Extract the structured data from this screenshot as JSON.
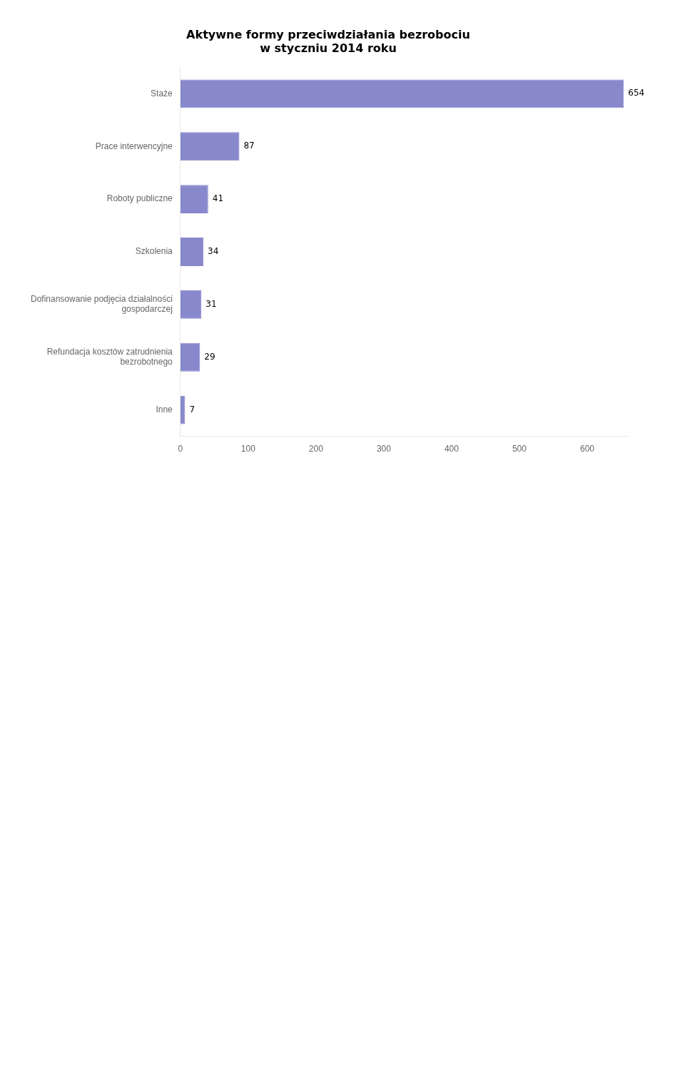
{
  "chart_data": {
    "type": "bar",
    "orientation": "horizontal",
    "title": "Aktywne formy przeciwdziałania bezrobociu\nw styczniu 2014 roku",
    "categories": [
      "Staże",
      "Prace interwencyjne",
      "Roboty publiczne",
      "Szkolenia",
      "Dofinansowanie podjęcia działalności\ngospodarczej",
      "Refundacja kosztów zatrudnienia\nbezrobotnego",
      "Inne"
    ],
    "values": [
      654,
      87,
      41,
      34,
      31,
      29,
      7
    ],
    "color": "#8888cc",
    "xlim": [
      0,
      660
    ],
    "xticks": [
      0,
      100,
      200,
      300,
      400,
      500,
      600
    ],
    "grid": false,
    "data_labels": true
  }
}
